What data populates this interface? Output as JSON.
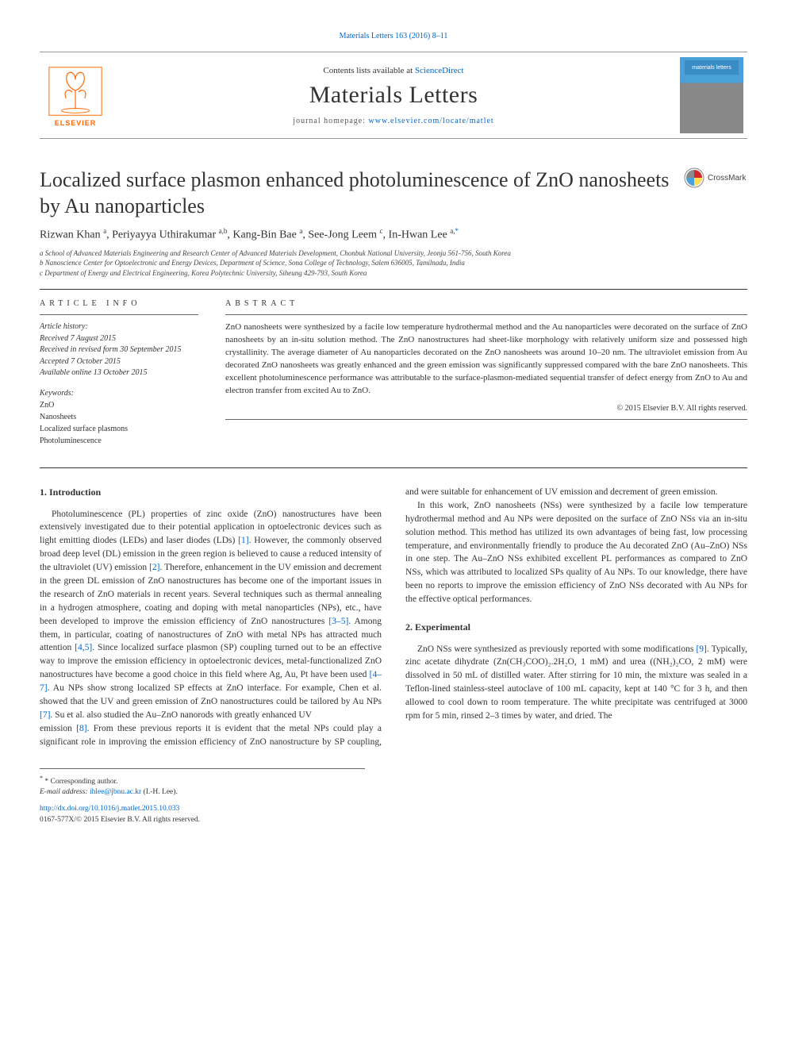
{
  "header": {
    "citation": "Materials Letters 163 (2016) 8–11",
    "contents_prefix": "Contents lists available at ",
    "contents_link": "ScienceDirect",
    "journal": "Materials Letters",
    "homepage_label": "journal homepage: ",
    "homepage_url": "www.elsevier.com/locate/matlet",
    "elsevier_wordmark": "ELSEVIER",
    "cover_label": "materials letters"
  },
  "crossmark": {
    "label": "CrossMark"
  },
  "title": "Localized surface plasmon enhanced photoluminescence of ZnO nanosheets by Au nanoparticles",
  "authors_html": "Rizwan Khan <sup>a</sup>, Periyayya Uthirakumar <sup>a,b</sup>, Kang-Bin Bae <sup>a</sup>, See-Jong Leem <sup>c</sup>, In-Hwan Lee <sup>a,</sup><sup class='corr'>*</sup>",
  "affiliations": {
    "a": "a School of Advanced Materials Engineering and Research Center of Advanced Materials Development, Chonbuk National University, Jeonju 561-756, South Korea",
    "b": "b Nanoscience Center for Optoelectronic and Energy Devices, Department of Science, Sona College of Technology, Salem 636005, Tamilnadu, India",
    "c": "c Department of Energy and Electrical Engineering, Korea Polytechnic University, Siheung 429-793, South Korea"
  },
  "article_info": {
    "heading": "ARTICLE INFO",
    "history_label": "Article history:",
    "received": "Received 7 August 2015",
    "revised": "Received in revised form 30 September 2015",
    "accepted": "Accepted 7 October 2015",
    "online": "Available online 13 October 2015",
    "keywords_label": "Keywords:",
    "keywords": [
      "ZnO",
      "Nanosheets",
      "Localized surface plasmons",
      "Photoluminescence"
    ]
  },
  "abstract": {
    "heading": "ABSTRACT",
    "text": "ZnO nanosheets were synthesized by a facile low temperature hydrothermal method and the Au nanoparticles were decorated on the surface of ZnO nanosheets by an in-situ solution method. The ZnO nanostructures had sheet-like morphology with relatively uniform size and possessed high crystallinity. The average diameter of Au nanoparticles decorated on the ZnO nanosheets was around 10–20 nm. The ultraviolet emission from Au decorated ZnO nanosheets was greatly enhanced and the green emission was significantly suppressed compared with the bare ZnO nanosheets. This excellent photoluminescence performance was attributable to the surface-plasmon-mediated sequential transfer of defect energy from ZnO to Au and electron transfer from excited Au to ZnO.",
    "copyright": "© 2015 Elsevier B.V. All rights reserved."
  },
  "sections": {
    "intro_heading": "1.  Introduction",
    "intro_p1": "Photoluminescence (PL) properties of zinc oxide (ZnO) nanostructures have been extensively investigated due to their potential application in optoelectronic devices such as light emitting diodes (LEDs) and laser diodes (LDs) [1]. However, the commonly observed broad deep level (DL) emission in the green region is believed to cause a reduced intensity of the ultraviolet (UV) emission [2]. Therefore, enhancement in the UV emission and decrement in the green DL emission of ZnO nanostructures has become one of the important issues in the research of ZnO materials in recent years. Several techniques such as thermal annealing in a hydrogen atmosphere, coating and doping with metal nanoparticles (NPs), etc., have been developed to improve the emission efficiency of ZnO nanostructures [3–5]. Among them, in particular, coating of nanostructures of ZnO with metal NPs has attracted much attention [4,5]. Since localized surface plasmon (SP) coupling turned out to be an effective way to improve the emission efficiency in optoelectronic devices, metal-functionalized ZnO nanostructures have become a good choice in this field where Ag, Au, Pt have been used [4–7]. Au NPs show strong localized SP effects at ZnO interface. For example, Chen et al. showed that the UV and green emission of ZnO nanostructures could be tailored by Au NPs [7]. Su et al. also studied the Au–ZnO nanorods with greatly enhanced UV",
    "intro_p2": "emission [8]. From these previous reports it is evident that the metal NPs could play a significant role in improving the emission efficiency of ZnO nanostructure by SP coupling, and were suitable for enhancement of UV emission and decrement of green emission.",
    "intro_p3": "In this work, ZnO nanosheets (NSs) were synthesized by a facile low temperature hydrothermal method and Au NPs were deposited on the surface of ZnO NSs via an in-situ solution method. This method has utilized its own advantages of being fast, low processing temperature, and environmentally friendly to produce the Au decorated ZnO (Au–ZnO) NSs in one step. The Au–ZnO NSs exhibited excellent PL performances as compared to ZnO NSs, which was attributed to localized SPs quality of Au NPs. To our knowledge, there have been no reports to improve the emission efficiency of ZnO NSs decorated with Au NPs for the effective optical performances.",
    "exp_heading": "2.  Experimental",
    "exp_p1": "ZnO NSs were synthesized as previously reported with some modifications [9]. Typically, zinc acetate dihydrate (Zn(CH₃COO)₂.2H₂O, 1 mM) and urea ((NH₂)₂CO, 2 mM) were dissolved in 50 mL of distilled water. After stirring for 10 min, the mixture was sealed in a Teflon-lined stainless-steel autoclave of 100 mL capacity, kept at 140 °C for 3 h, and then allowed to cool down to room temperature. The white precipitate was centrifuged at 3000 rpm for 5 min, rinsed 2–3 times by water, and dried. The"
  },
  "footnotes": {
    "corr": "* Corresponding author.",
    "email_label": "E-mail address: ",
    "email": "ihlee@jbnu.ac.kr",
    "email_who": " (I.-H. Lee)."
  },
  "bottom": {
    "doi": "http://dx.doi.org/10.1016/j.matlet.2015.10.033",
    "issn": "0167-577X/© 2015 Elsevier B.V. All rights reserved."
  },
  "colors": {
    "link": "#0066cc",
    "elsevier_orange": "#ff6600",
    "rule": "#333333",
    "text": "#333333"
  }
}
